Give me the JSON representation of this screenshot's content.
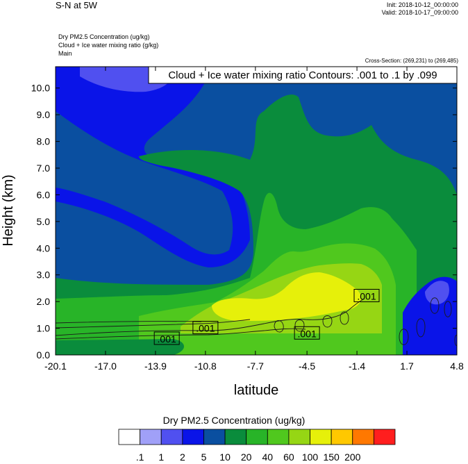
{
  "header": {
    "title": "S-N at 5W",
    "init": "Init: 2018-10-12_00:00:00",
    "valid": "Valid: 2018-10-17_09:00:00",
    "field_line1": "Dry PM2.5 Concentration   (ug/kg)",
    "field_line2": "Cloud + Ice water mixing ratio   (g/kg)",
    "field_line3": "Main",
    "cross_section": "Cross-Section: (269,231) to (269,485)"
  },
  "chart_data": {
    "type": "heatmap",
    "title": "Cloud + Ice water mixing ratio Contours: .001 to .1 by .099",
    "xlabel": "latitude",
    "ylabel": "Height (km)",
    "xlim": [
      -20.1,
      4.8
    ],
    "ylim": [
      0.0,
      10.8
    ],
    "x_ticks": [
      "-20.1",
      "-17.0",
      "-13.9",
      "-10.8",
      "-7.7",
      "-4.5",
      "-1.4",
      "1.7",
      "4.8"
    ],
    "y_ticks": [
      "0.0",
      "1.0",
      "2.0",
      "3.0",
      "4.0",
      "5.0",
      "6.0",
      "7.0",
      "8.0",
      "9.0",
      "10.0"
    ],
    "x_tick_values": [
      -20.1,
      -17.0,
      -13.9,
      -10.8,
      -7.7,
      -4.5,
      -1.4,
      1.7,
      4.8
    ],
    "y_tick_values": [
      0,
      1,
      2,
      3,
      4,
      5,
      6,
      7,
      8,
      9,
      10
    ],
    "contour_labels": [
      {
        "text": ".001",
        "lat": -13.2,
        "height": 0.6
      },
      {
        "text": ".001",
        "lat": -10.8,
        "height": 1.0
      },
      {
        "text": ".001",
        "lat": -4.5,
        "height": 0.8
      },
      {
        "text": ".001",
        "lat": -0.8,
        "height": 2.2
      }
    ],
    "colorbar": {
      "title": "Dry PM2.5 Concentration  (ug/kg)",
      "levels": [
        ".1",
        "1",
        "2",
        "5",
        "10",
        "20",
        "40",
        "60",
        "100",
        "150",
        "200"
      ],
      "colors": [
        "#ffffff",
        "#a0a0f8",
        "#5050f0",
        "#0a14e8",
        "#0a4fa0",
        "#0a8c3c",
        "#28b428",
        "#50c81e",
        "#96d614",
        "#e6f00a",
        "#ffc800",
        "#ff7800",
        "#ff1e1e"
      ]
    },
    "field": {
      "colors": {
        "light": "#a0a0f8",
        "medium": "#5050f0",
        "blue": "#0a14e8",
        "navy": "#0a4fa0",
        "dkgreen": "#0a8c3c",
        "green": "#28b428",
        "ltgreen": "#50c81e",
        "yg": "#96d614",
        "yellow": "#e6f00a"
      }
    }
  }
}
